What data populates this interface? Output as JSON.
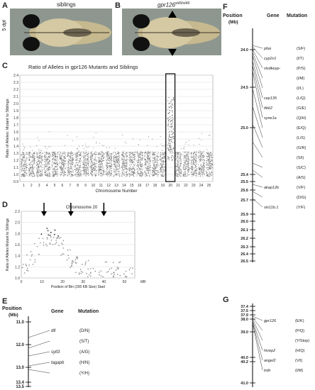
{
  "panels": {
    "a": {
      "letter": "A",
      "title": "siblings",
      "stage": "5 dpf"
    },
    "b": {
      "letter": "B",
      "title": "gpr126",
      "title_sup": "st49/st49"
    },
    "c": {
      "letter": "C",
      "title": "Ratio of Alleles in gpr126 Mutants and Siblings",
      "title_sup": "st49",
      "ylabel": "Ratio of Alleles: Mutant to Siblings",
      "xlabel": "Chromosome Number",
      "yticks": [
        "0.9",
        "1.0",
        "1.1",
        "1.2",
        "1.3",
        "1.4",
        "1.5",
        "1.6",
        "1.7",
        "1.8",
        "1.9",
        "2.0",
        "2.1",
        "2.2",
        "2.3",
        "2.4"
      ],
      "xticks": [
        "1",
        "2",
        "3",
        "4",
        "5",
        "6",
        "7",
        "8",
        "9",
        "10",
        "11",
        "12",
        "13",
        "14",
        "15",
        "16",
        "17",
        "18",
        "19",
        "20",
        "21",
        "22",
        "23",
        "24",
        "25"
      ],
      "highlight": "20"
    },
    "d": {
      "letter": "D",
      "title": "Chromosome 20",
      "ylabel": "Ratio of Alleles Mutant to Siblings",
      "xlabel": "Position of Bin (200 KB Size) Start",
      "unit": "MB",
      "yticks": [
        "1.0",
        "1.2",
        "1.4",
        "1.6",
        "1.8",
        "2.0",
        "2.2"
      ],
      "xticks": [
        "0",
        "10",
        "20",
        "30",
        "40",
        "50"
      ]
    },
    "e": {
      "letter": "E",
      "pos_header": "Position",
      "pos_unit": "(Mb)",
      "gene_header": "Gene",
      "mut_header": "Mutation",
      "ticks": [
        "11.0",
        "12.0",
        "13.0",
        "13.4",
        "13.5"
      ],
      "genes": [
        {
          "gene": "dtl",
          "mut": "(D/N)"
        },
        {
          "gene": "",
          "mut": "(S/T)"
        },
        {
          "gene": "sytl3",
          "mut": "(A/G)"
        },
        {
          "gene": "tagapb",
          "mut": "(H/N)"
        },
        {
          "gene": "",
          "mut": "(Y/H)"
        }
      ]
    },
    "f": {
      "letter": "F",
      "pos_header": "Position",
      "pos_unit": "(Mb)",
      "gene_header": "Gene",
      "mut_header": "Mutation",
      "ticks": [
        "24.0",
        "24.5",
        "25.0",
        "25.4",
        "25.5",
        "25.6",
        "25.7",
        "25.9",
        "26.0",
        "26.1",
        "26.2",
        "26.3",
        "26.4",
        "26.5"
      ],
      "genes": [
        {
          "gene": "pfas",
          "mut": "(S/F)"
        },
        {
          "gene": "cyp2v1",
          "mut": "(I/T)"
        },
        {
          "gene": "slsdkeyp-",
          "mut": "(P/S)"
        },
        {
          "gene": "",
          "mut": "(I/M)"
        },
        {
          "gene": "",
          "mut": "(I/L)"
        },
        {
          "gene": "cep135",
          "mut": "(L/Q)"
        },
        {
          "gene": "ttbk2",
          "mut": "(G/E)"
        },
        {
          "gene": "syne1a",
          "mut": "(Q/H)"
        },
        {
          "gene": "",
          "mut": "(E/Q)"
        },
        {
          "gene": "",
          "mut": "(L/S)"
        },
        {
          "gene": "",
          "mut": "(G/R)"
        },
        {
          "gene": "",
          "mut": "(S/I)"
        },
        {
          "gene": "",
          "mut": "(S/C)"
        },
        {
          "gene": "",
          "mut": "(A/S)"
        },
        {
          "gene": "akap12b",
          "mut": "(V/F)"
        },
        {
          "gene": "",
          "mut": "(D/G)"
        },
        {
          "gene": "stx11b.1",
          "mut": "(Y/F)"
        }
      ]
    },
    "g": {
      "letter": "G",
      "ticks": [
        "37.4",
        "37.5",
        "37.9",
        "38.0",
        "39.0",
        "40.0",
        "40.2",
        "41.0"
      ],
      "genes": [
        {
          "gene": "gpr126",
          "mut": "(E/K)"
        },
        {
          "gene": "",
          "mut": "(P/Q)"
        },
        {
          "gene": "",
          "mut": "(Y/Stop)"
        },
        {
          "gene": "hivep2",
          "mut": "(H/Q)"
        },
        {
          "gene": "angel2",
          "mut": "(V/I)"
        },
        {
          "gene": "trdn",
          "mut": "(I/M)"
        }
      ]
    }
  }
}
